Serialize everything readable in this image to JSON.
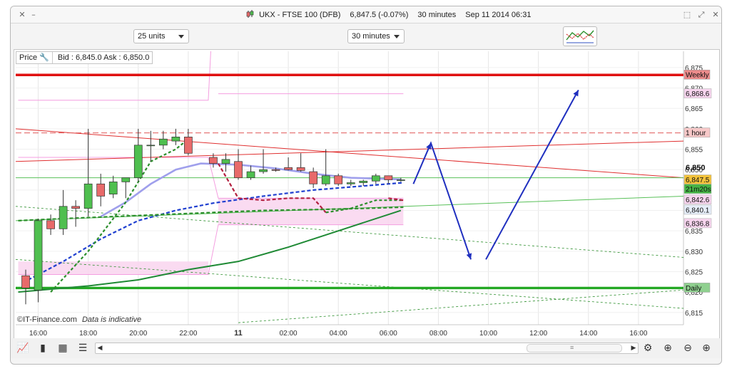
{
  "window": {
    "title_symbol": "UKX - FTSE 100 (DFB)",
    "title_price": "6,847.5 (-0.07%)",
    "title_interval": "30 minutes",
    "title_datetime": "Sep 11 2014 06:31",
    "icons": [
      "close-icon",
      "minimize-icon",
      "maximize-icon",
      "restore-icon"
    ]
  },
  "toolbar": {
    "units_value": "25 units",
    "interval_value": "30 minutes",
    "drawing_tools_icon": "drawing-tools-icon"
  },
  "price_box": {
    "price_label": "Price",
    "quote": "Bid : 6,845.0 Ask : 6,850.0"
  },
  "footer": {
    "copyright": "©IT-Finance.com",
    "note": "Data is indicative"
  },
  "bottom_icons": [
    "chart-type-icon",
    "candlestick-icon",
    "table-icon",
    "indicators-icon",
    "scroll-left-icon",
    "scroll-right-icon",
    "alert-icon",
    "zoom-fit-icon",
    "zoom-out-icon",
    "zoom-in-icon"
  ],
  "chart_data": {
    "type": "candlestick",
    "title": "UKX - FTSE 100 (DFB)",
    "interval": "30 minutes",
    "ylim": [
      6812,
      6879
    ],
    "y_ticks": [
      "6,875",
      "6,870",
      "6,865",
      "6,860",
      "6,855",
      "6,850",
      "6,845",
      "6,840",
      "6,835",
      "6,830",
      "6,825",
      "6,820",
      "6,815"
    ],
    "y_tick_values": [
      6875,
      6870,
      6865,
      6860,
      6855,
      6850,
      6845,
      6840,
      6835,
      6830,
      6825,
      6820,
      6815
    ],
    "x_ticks": [
      "16:00",
      "18:00",
      "20:00",
      "22:00",
      "11",
      "02:00",
      "04:00",
      "06:00",
      "08:00",
      "10:00",
      "12:00",
      "14:00",
      "16:00"
    ],
    "x_tick_hours": [
      16,
      18,
      20,
      22,
      24,
      26,
      28,
      30,
      32,
      34,
      36,
      38,
      40
    ],
    "xlim_hours": [
      15.1,
      41.8
    ],
    "candles": [
      {
        "t": 15.5,
        "o": 6824.0,
        "h": 6825.5,
        "l": 6817.0,
        "c": 6821.0
      },
      {
        "t": 16.0,
        "o": 6820.5,
        "h": 6838.0,
        "l": 6817.5,
        "c": 6837.5
      },
      {
        "t": 16.5,
        "o": 6837.5,
        "h": 6839.0,
        "l": 6834.0,
        "c": 6835.5
      },
      {
        "t": 17.0,
        "o": 6835.5,
        "h": 6845.0,
        "l": 6834.0,
        "c": 6841.0
      },
      {
        "t": 17.5,
        "o": 6841.0,
        "h": 6842.5,
        "l": 6836.0,
        "c": 6840.5
      },
      {
        "t": 18.0,
        "o": 6840.5,
        "h": 6860.0,
        "l": 6838.5,
        "c": 6846.5
      },
      {
        "t": 18.5,
        "o": 6846.5,
        "h": 6849.0,
        "l": 6841.0,
        "c": 6843.5
      },
      {
        "t": 19.0,
        "o": 6844.0,
        "h": 6848.5,
        "l": 6843.0,
        "c": 6847.0
      },
      {
        "t": 19.5,
        "o": 6847.0,
        "h": 6848.0,
        "l": 6843.0,
        "c": 6848.0
      },
      {
        "t": 20.0,
        "o": 6848.0,
        "h": 6860.0,
        "l": 6847.0,
        "c": 6856.0
      },
      {
        "t": 20.5,
        "o": 6856.0,
        "h": 6859.5,
        "l": 6852.0,
        "c": 6856.0
      },
      {
        "t": 21.0,
        "o": 6856.0,
        "h": 6859.5,
        "l": 6855.0,
        "c": 6857.5
      },
      {
        "t": 21.5,
        "o": 6857.0,
        "h": 6860.0,
        "l": 6856.0,
        "c": 6858.0
      },
      {
        "t": 22.0,
        "o": 6858.0,
        "h": 6860.0,
        "l": 6853.5,
        "c": 6854.0
      },
      {
        "t": 23.0,
        "o": 6853.0,
        "h": 6854.0,
        "l": 6850.5,
        "c": 6851.5
      },
      {
        "t": 23.5,
        "o": 6851.5,
        "h": 6854.0,
        "l": 6849.5,
        "c": 6852.5
      },
      {
        "t": 24.0,
        "o": 6852.0,
        "h": 6855.0,
        "l": 6847.5,
        "c": 6848.0
      },
      {
        "t": 24.5,
        "o": 6848.0,
        "h": 6851.0,
        "l": 6847.5,
        "c": 6849.5
      },
      {
        "t": 25.0,
        "o": 6849.5,
        "h": 6855.0,
        "l": 6849.0,
        "c": 6850.0
      },
      {
        "t": 25.5,
        "o": 6850.0,
        "h": 6850.5,
        "l": 6849.5,
        "c": 6849.8
      },
      {
        "t": 26.0,
        "o": 6850.5,
        "h": 6853.0,
        "l": 6849.8,
        "c": 6850.0
      },
      {
        "t": 26.5,
        "o": 6850.5,
        "h": 6854.0,
        "l": 6849.5,
        "c": 6849.8
      },
      {
        "t": 27.0,
        "o": 6849.5,
        "h": 6850.5,
        "l": 6845.5,
        "c": 6846.5
      },
      {
        "t": 27.5,
        "o": 6846.5,
        "h": 6855.0,
        "l": 6846.0,
        "c": 6848.5
      },
      {
        "t": 28.0,
        "o": 6848.5,
        "h": 6849.0,
        "l": 6846.0,
        "c": 6846.5
      },
      {
        "t": 28.5,
        "o": 6846.5,
        "h": 6847.5,
        "l": 6846.0,
        "c": 6846.8
      },
      {
        "t": 29.0,
        "o": 6846.8,
        "h": 6847.5,
        "l": 6846.0,
        "c": 6847.2
      },
      {
        "t": 29.5,
        "o": 6847.2,
        "h": 6849.0,
        "l": 6846.5,
        "c": 6848.5
      },
      {
        "t": 30.0,
        "o": 6848.5,
        "h": 6848.5,
        "l": 6846.5,
        "c": 6847.5
      },
      {
        "t": 30.5,
        "o": 6847.5,
        "h": 6848.0,
        "l": 6847.0,
        "c": 6847.5
      }
    ],
    "series": [
      {
        "name": "",
        "style": "solid",
        "color": "#9f9fec",
        "values": [
          [
            18.5,
            6838.5
          ],
          [
            19.5,
            6842.0
          ],
          [
            20.5,
            6846.5
          ],
          [
            21.5,
            6850.0
          ],
          [
            22.5,
            6851.5
          ],
          [
            24,
            6851.2
          ],
          [
            25.5,
            6850.3
          ],
          [
            27,
            6849.0
          ],
          [
            28.5,
            6848.0
          ],
          [
            30.5,
            6847.6
          ]
        ]
      },
      {
        "name": "",
        "style": "dashed",
        "color": "#1f3fd0",
        "values": [
          [
            15.6,
            6823.0
          ],
          [
            17,
            6827.5
          ],
          [
            18.5,
            6833.0
          ],
          [
            20,
            6837.5
          ],
          [
            21.5,
            6840.0
          ],
          [
            23,
            6841.8
          ],
          [
            25,
            6843.5
          ],
          [
            27,
            6845.0
          ],
          [
            29,
            6846.0
          ],
          [
            30.6,
            6846.8
          ]
        ]
      },
      {
        "name": "",
        "style": "dashed",
        "color": "#2c8f2c",
        "values": [
          [
            15.2,
            6837.5
          ],
          [
            17,
            6838.0
          ],
          [
            19,
            6838.5
          ],
          [
            21,
            6839.0
          ],
          [
            23,
            6839.5
          ],
          [
            25,
            6840.0
          ],
          [
            27,
            6840.2
          ],
          [
            29,
            6840.5
          ],
          [
            30.6,
            6840.8
          ]
        ]
      },
      {
        "name": "",
        "style": "dotted",
        "color": "#2c8f2c",
        "values": [
          [
            16.5,
            6820.0
          ],
          [
            18,
            6830.0
          ],
          [
            19.5,
            6842.0
          ],
          [
            20.5,
            6852.0
          ],
          [
            21.5,
            6855.0
          ],
          [
            22,
            6857.5
          ]
        ]
      },
      {
        "name": "",
        "style": "dashed",
        "color": "#b31f3f",
        "values": [
          [
            23.2,
            6851.5
          ],
          [
            24,
            6843.0
          ],
          [
            25,
            6842.5
          ],
          [
            26,
            6843.0
          ],
          [
            27,
            6843.0
          ],
          [
            27.5,
            6839.5
          ]
        ]
      },
      {
        "name": "",
        "style": "dotted",
        "color": "#2c8f2c",
        "values": [
          [
            27.5,
            6839.5
          ],
          [
            28.5,
            6840.5
          ],
          [
            29.5,
            6842.5
          ],
          [
            30.6,
            6842.5
          ]
        ]
      },
      {
        "name": "",
        "style": "solid",
        "color": "#1f8a35",
        "values": [
          [
            15.2,
            6820.0
          ],
          [
            18,
            6821.5
          ],
          [
            20,
            6823.0
          ],
          [
            22,
            6825.5
          ],
          [
            24,
            6827.5
          ],
          [
            26,
            6831.0
          ],
          [
            28,
            6835.0
          ],
          [
            30.5,
            6840.0
          ]
        ]
      },
      {
        "name": "",
        "style": "dashed",
        "color": "#b31f3f",
        "values": [
          [
            30.0,
            6843.0
          ],
          [
            30.6,
            6842.5
          ]
        ]
      }
    ],
    "levels": [
      {
        "label": "Weekly",
        "value": 6873.2,
        "color": "#e01010"
      },
      {
        "label": "1 hour",
        "value": 6859.0,
        "color": "#e05a5a"
      },
      {
        "label": "Daily",
        "value": 6821.0,
        "color": "#23a823"
      }
    ],
    "price_labels": [
      {
        "text": "6,850",
        "value": 6850.5,
        "bold": true
      },
      {
        "text": "6,847.5",
        "value": 6847.5,
        "bg": "#f3c23a"
      },
      {
        "text": "21m20s",
        "value": 6845.2,
        "bg": "#46b446"
      },
      {
        "text": "6,842.6",
        "value": 6842.6,
        "bg": "#f7d4ee"
      },
      {
        "text": "6,840.1",
        "value": 6840.1,
        "bg": "#e6eef9"
      },
      {
        "text": "6,836.8",
        "value": 6836.8,
        "bg": "#f7d4ee"
      },
      {
        "text": "6,868.6",
        "value": 6868.6,
        "bg": "#f7d4ee"
      }
    ],
    "colors": {
      "up": "#4fbf4f",
      "down": "#e86a6a",
      "arrow": "#1f2fbf"
    }
  }
}
